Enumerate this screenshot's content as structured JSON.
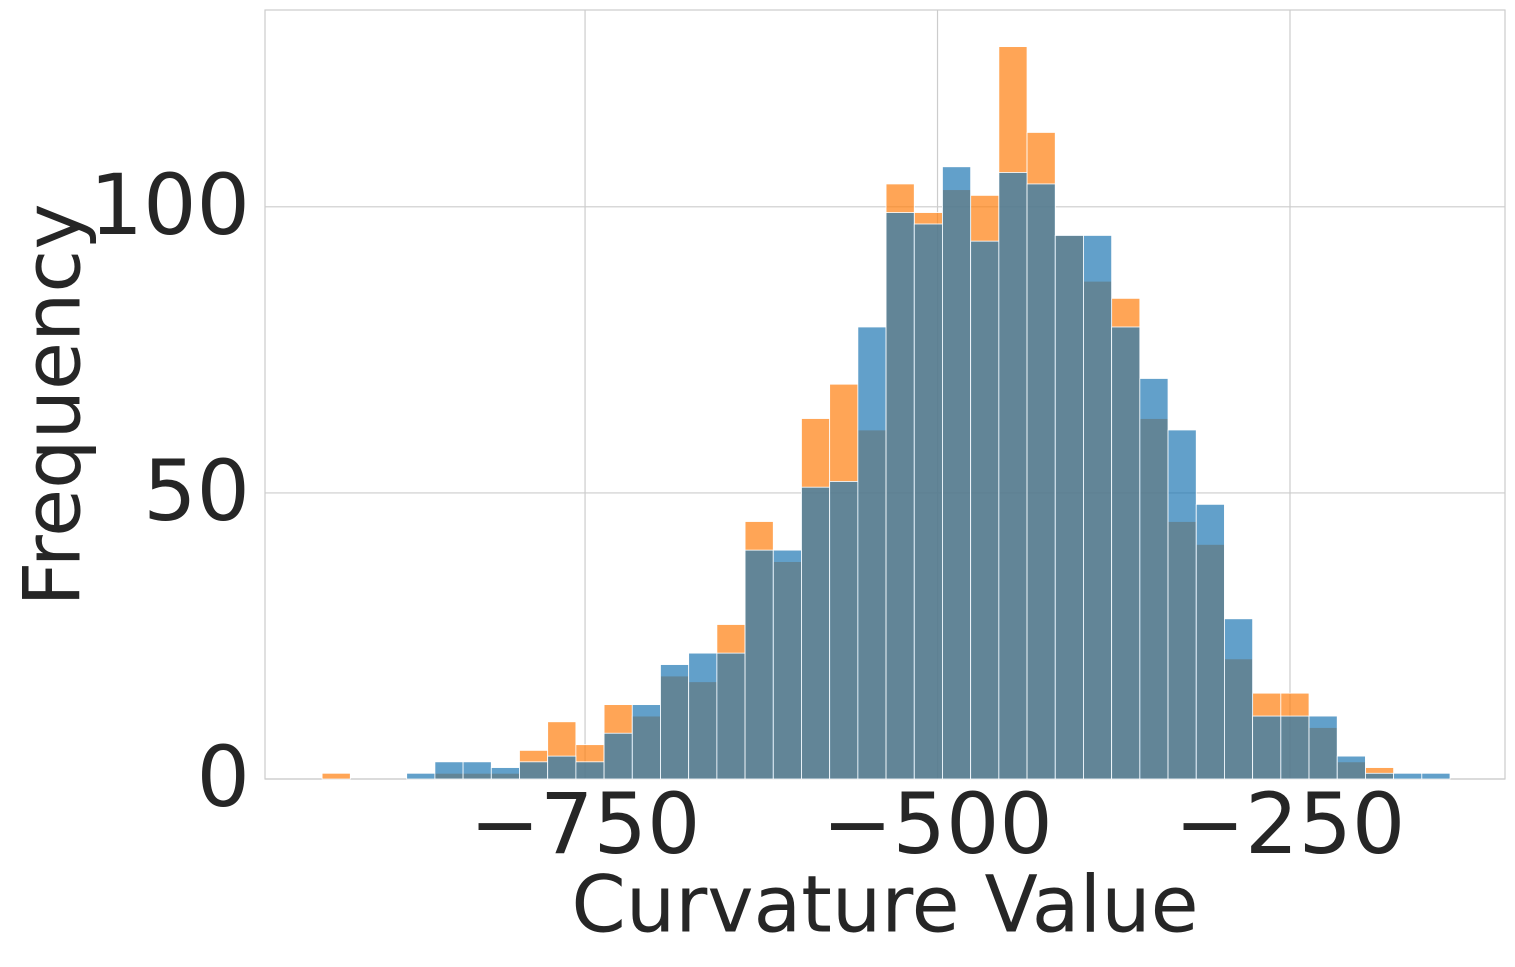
{
  "chart_data": {
    "type": "histogram",
    "xlabel": "Curvature Value",
    "ylabel": "Frequency",
    "bins": [
      -936.5,
      -916.5,
      -896.5,
      -876.5,
      -856.5,
      -836.5,
      -816.5,
      -796.5,
      -776.5,
      -756.5,
      -736.5,
      -716.5,
      -696.5,
      -676.5,
      -656.5,
      -636.5,
      -616.5,
      -596.5,
      -576.5,
      -556.5,
      -536.5,
      -516.5,
      -496.5,
      -476.5,
      -456.5,
      -436.5,
      -416.5,
      -396.5,
      -376.5,
      -356.5,
      -336.5,
      -316.5,
      -296.5,
      -276.5,
      -256.5,
      -236.5,
      -216.5,
      -196.5,
      -176.5,
      -156.5,
      -136.5
    ],
    "series": [
      {
        "color": "#ff7f0e",
        "values": [
          1,
          0,
          0,
          0,
          1,
          1,
          1,
          5,
          10,
          6,
          13,
          11,
          18,
          17,
          27,
          45,
          38,
          63,
          69,
          61,
          104,
          99,
          103,
          102,
          128,
          113,
          95,
          87,
          84,
          63,
          45,
          41,
          21,
          15,
          15,
          9,
          3,
          2,
          0,
          0
        ]
      },
      {
        "color": "#1f77b4",
        "values": [
          0,
          0,
          0,
          1,
          3,
          3,
          2,
          3,
          4,
          3,
          8,
          13,
          20,
          22,
          22,
          40,
          40,
          51,
          52,
          79,
          99,
          97,
          107,
          94,
          106,
          104,
          95,
          95,
          79,
          70,
          61,
          48,
          28,
          11,
          11,
          11,
          4,
          1,
          1,
          1
        ]
      }
    ],
    "xlim": [
      -977,
      -97.5
    ],
    "ylim": [
      0,
      134.4
    ],
    "xticks": [
      {
        "value": -750,
        "label": "−750"
      },
      {
        "value": -500,
        "label": "−500"
      },
      {
        "value": -250,
        "label": "−250"
      }
    ],
    "yticks": [
      0,
      50,
      100
    ],
    "grid": true
  }
}
